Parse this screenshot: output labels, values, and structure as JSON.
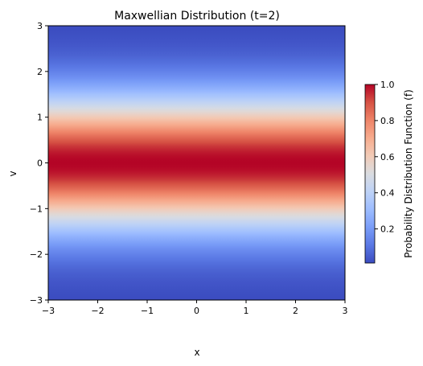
{
  "chart_data": {
    "type": "heatmap",
    "title": "Maxwellian Distribution (t=2)",
    "xlabel": "x",
    "ylabel": "v",
    "xlim": [
      -3,
      3
    ],
    "ylim": [
      -3,
      3
    ],
    "x_ticks": [
      -3,
      -2,
      -1,
      0,
      1,
      2,
      3
    ],
    "x_tick_labels": [
      "−3",
      "−2",
      "−1",
      "0",
      "1",
      "2",
      "3"
    ],
    "y_ticks": [
      -3,
      -2,
      -1,
      0,
      1,
      2,
      3
    ],
    "y_tick_labels": [
      "−3",
      "−2",
      "−1",
      "0",
      "1",
      "2",
      "3"
    ],
    "function": "f(v) = exp(-v^2 / 2), independent of x",
    "profile": {
      "v": [
        -3,
        -2.5,
        -2,
        -1.5,
        -1,
        -0.5,
        0,
        0.5,
        1,
        1.5,
        2,
        2.5,
        3
      ],
      "f": [
        0.011,
        0.044,
        0.135,
        0.325,
        0.607,
        0.882,
        1.0,
        0.882,
        0.607,
        0.325,
        0.135,
        0.044,
        0.011
      ]
    },
    "colorbar": {
      "label": "Probability Distribution Function (f)",
      "range": [
        0.011,
        1.0
      ],
      "ticks": [
        0.2,
        0.4,
        0.6,
        0.8,
        1.0
      ],
      "tick_labels": [
        "0.2",
        "0.4",
        "0.6",
        "0.8",
        "1.0"
      ]
    },
    "colormap": "coolwarm",
    "colormap_stops": [
      "#3b4cc0",
      "#5a78e4",
      "#7a9df8",
      "#9dbdff",
      "#bed2f6",
      "#dadce0",
      "#f2cbb7",
      "#f7ac8e",
      "#ee8468",
      "#d65244",
      "#b40426"
    ]
  }
}
